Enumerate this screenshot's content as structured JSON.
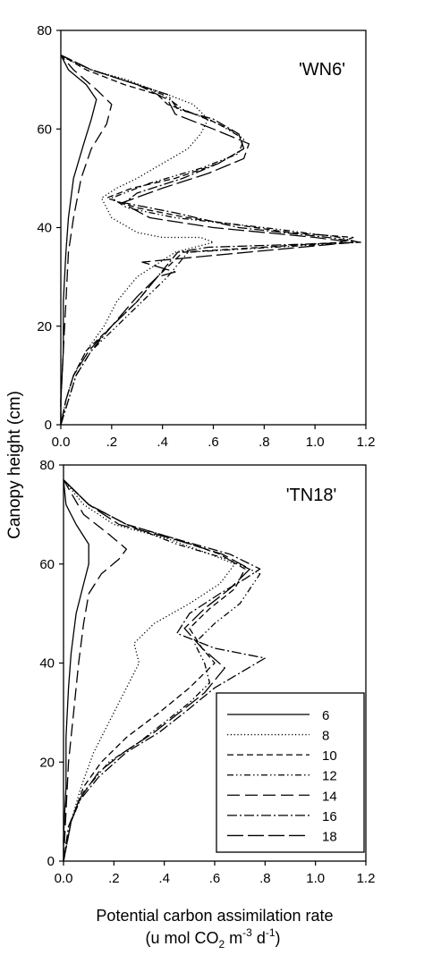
{
  "figure": {
    "ylabel": "Canopy height (cm)",
    "xlabel_line1": "Potential carbon assimilation rate",
    "xlabel_line2_parts": [
      "(u mol CO",
      "2",
      " m",
      "-3",
      " d",
      "-1",
      ")"
    ]
  },
  "chart_data": [
    {
      "type": "line",
      "title": "'WN6'",
      "xlabel": "Potential carbon assimilation rate (u mol CO2 m-3 d-1)",
      "ylabel": "Canopy height (cm)",
      "xlim": [
        0,
        1.2
      ],
      "ylim": [
        0,
        80
      ],
      "x_ticks": [
        0,
        0.2,
        0.4,
        0.6,
        0.8,
        1.0,
        1.2
      ],
      "x_tick_labels": [
        "0.0",
        ".2",
        ".4",
        ".6",
        ".8",
        "1.0",
        "1.2"
      ],
      "y_ticks": [
        0,
        20,
        40,
        60,
        80
      ],
      "y_tick_labels": [
        "0",
        "20",
        "40",
        "60",
        "80"
      ],
      "grid": false,
      "series": [
        {
          "name": "6",
          "style": "solid",
          "x": [
            0,
            0,
            0.01,
            0.01,
            0.02,
            0.03,
            0.05,
            0.09,
            0.12,
            0.14,
            0.1,
            0.03,
            0
          ],
          "y": [
            0,
            5,
            15,
            25,
            35,
            42,
            50,
            57,
            62,
            66,
            69,
            72,
            75
          ]
        },
        {
          "name": "8",
          "style": "dotted",
          "x": [
            0,
            0.02,
            0.05,
            0.1,
            0.17,
            0.22,
            0.3,
            0.45,
            0.6,
            0.55,
            0.4,
            0.3,
            0.2,
            0.16,
            0.22,
            0.3,
            0.4,
            0.5,
            0.55,
            0.58,
            0.52,
            0.42,
            0.36,
            0.26,
            0.12,
            0.03,
            0
          ],
          "y": [
            0,
            5,
            10,
            15,
            20,
            25,
            30,
            35,
            37,
            38,
            38,
            39,
            42,
            46,
            48,
            50,
            53,
            56,
            59,
            62,
            65,
            67,
            68,
            70,
            72,
            74,
            75
          ]
        },
        {
          "name": "10",
          "style": "dashed",
          "x": [
            0,
            0.02,
            0.05,
            0.1,
            0.2,
            0.3,
            0.38,
            0.48,
            1.1,
            1.15,
            0.9,
            0.5,
            0.3,
            0.18,
            0.28,
            0.45,
            0.62,
            0.72,
            0.7,
            0.58,
            0.42,
            0.38,
            0.25,
            0.1,
            0
          ],
          "y": [
            0,
            5,
            10,
            15,
            20,
            25,
            30,
            35,
            37,
            38,
            39,
            42,
            44,
            46,
            48,
            50,
            53,
            56,
            59,
            62,
            65,
            67,
            69,
            72,
            75
          ]
        },
        {
          "name": "12",
          "style": "dashdotdot",
          "x": [
            0,
            0.03,
            0.06,
            0.12,
            0.22,
            0.32,
            0.42,
            0.5,
            1.17,
            1.1,
            0.8,
            0.45,
            0.26,
            0.2,
            0.35,
            0.55,
            0.7,
            0.72,
            0.62,
            0.48,
            0.4,
            0.3,
            0.12,
            0
          ],
          "y": [
            0,
            5,
            10,
            15,
            20,
            25,
            30,
            35,
            37,
            38,
            40,
            42,
            44,
            46,
            49,
            52,
            55,
            58,
            61,
            64,
            67,
            69,
            72,
            75
          ]
        },
        {
          "name": "14",
          "style": "longdash",
          "x": [
            0,
            0,
            0.01,
            0.02,
            0.03,
            0.05,
            0.08,
            0.12,
            0.18,
            0.2,
            0.14,
            0.05,
            0
          ],
          "y": [
            0,
            5,
            15,
            25,
            35,
            42,
            50,
            56,
            61,
            65,
            68,
            72,
            75
          ]
        },
        {
          "name": "16",
          "style": "dashdot",
          "x": [
            0,
            0.03,
            0.06,
            0.12,
            0.2,
            0.3,
            0.38,
            0.46,
            0.58,
            1.18,
            1.05,
            0.7,
            0.45,
            0.25,
            0.3,
            0.48,
            0.62,
            0.72,
            0.7,
            0.6,
            0.46,
            0.42,
            0.3,
            0.12,
            0
          ],
          "y": [
            0,
            5,
            10,
            15,
            20,
            25,
            30,
            35,
            36,
            37,
            38,
            40,
            43,
            45,
            47,
            50,
            53,
            56,
            59,
            62,
            64,
            67,
            69,
            72,
            75
          ]
        },
        {
          "name": "18",
          "style": "longdash2",
          "x": [
            0,
            0.02,
            0.05,
            0.11,
            0.2,
            0.3,
            0.38,
            0.45,
            0.32,
            1.15,
            1.0,
            0.6,
            0.35,
            0.24,
            0.4,
            0.58,
            0.72,
            0.74,
            0.6,
            0.45,
            0.42,
            0.3,
            0.12,
            0
          ],
          "y": [
            0,
            5,
            10,
            15,
            20,
            26,
            30,
            31,
            33,
            37,
            38,
            40,
            42,
            45,
            48,
            51,
            54,
            57,
            60,
            63,
            66,
            69,
            72,
            75
          ]
        }
      ]
    },
    {
      "type": "line",
      "title": "'TN18'",
      "xlabel": "Potential carbon assimilation rate (u mol CO2 m-3 d-1)",
      "ylabel": "Canopy height (cm)",
      "xlim": [
        0,
        1.2
      ],
      "ylim": [
        0,
        80
      ],
      "x_ticks": [
        0,
        0.2,
        0.4,
        0.6,
        0.8,
        1.0,
        1.2
      ],
      "x_tick_labels": [
        "0.0",
        ".2",
        ".4",
        ".6",
        ".8",
        "1.0",
        "1.2"
      ],
      "y_ticks": [
        0,
        20,
        40,
        60,
        80
      ],
      "y_tick_labels": [
        "0",
        "20",
        "40",
        "60",
        "80"
      ],
      "grid": false,
      "legend": {
        "position": "lower-right"
      },
      "series": [
        {
          "name": "6",
          "style": "solid",
          "x": [
            0,
            0,
            0.01,
            0.01,
            0.02,
            0.03,
            0.05,
            0.08,
            0.1,
            0.1,
            0.05,
            0.01,
            0
          ],
          "y": [
            0,
            5,
            15,
            25,
            35,
            42,
            50,
            56,
            60,
            64,
            68,
            72,
            77
          ]
        },
        {
          "name": "8",
          "style": "dotted",
          "x": [
            0,
            0.03,
            0.07,
            0.12,
            0.16,
            0.2,
            0.25,
            0.3,
            0.28,
            0.36,
            0.5,
            0.62,
            0.68,
            0.58,
            0.42,
            0.2,
            0.08,
            0
          ],
          "y": [
            0,
            8,
            15,
            22,
            26,
            30,
            35,
            40,
            44,
            48,
            52,
            56,
            60,
            62,
            65,
            68,
            72,
            77
          ]
        },
        {
          "name": "10",
          "style": "dashed",
          "x": [
            0,
            0.03,
            0.08,
            0.15,
            0.25,
            0.38,
            0.5,
            0.6,
            0.55,
            0.5,
            0.58,
            0.68,
            0.72,
            0.62,
            0.45,
            0.25,
            0.1,
            0
          ],
          "y": [
            0,
            8,
            15,
            20,
            25,
            30,
            35,
            40,
            43,
            47,
            51,
            55,
            59,
            62,
            65,
            68,
            72,
            77
          ]
        },
        {
          "name": "12",
          "style": "dashdotdot",
          "x": [
            0,
            0.03,
            0.08,
            0.18,
            0.3,
            0.4,
            0.5,
            0.58,
            0.56,
            0.52,
            0.6,
            0.7,
            0.78,
            0.65,
            0.45,
            0.25,
            0.1,
            0
          ],
          "y": [
            0,
            8,
            14,
            20,
            24,
            28,
            32,
            36,
            40,
            44,
            48,
            52,
            58,
            61,
            64,
            68,
            72,
            77
          ]
        },
        {
          "name": "14",
          "style": "longdash",
          "x": [
            0,
            0.01,
            0.02,
            0.04,
            0.06,
            0.08,
            0.1,
            0.15,
            0.22,
            0.25,
            0.18,
            0.08,
            0
          ],
          "y": [
            0,
            10,
            20,
            30,
            40,
            48,
            54,
            58,
            61,
            63,
            66,
            70,
            77
          ]
        },
        {
          "name": "16",
          "style": "dashdot",
          "x": [
            0,
            0.02,
            0.06,
            0.14,
            0.25,
            0.38,
            0.48,
            0.6,
            0.8,
            0.6,
            0.45,
            0.5,
            0.62,
            0.72,
            0.78,
            0.66,
            0.45,
            0.25,
            0.1,
            0
          ],
          "y": [
            0,
            7,
            12,
            17,
            22,
            26,
            30,
            35,
            41,
            43,
            46,
            50,
            54,
            57,
            59,
            62,
            65,
            68,
            72,
            77
          ]
        },
        {
          "name": "18",
          "style": "longdash2",
          "x": [
            0,
            0.03,
            0.07,
            0.14,
            0.24,
            0.36,
            0.46,
            0.56,
            0.64,
            0.55,
            0.48,
            0.56,
            0.66,
            0.74,
            0.63,
            0.44,
            0.22,
            0.1,
            0
          ],
          "y": [
            0,
            8,
            13,
            18,
            22,
            26,
            30,
            34,
            39,
            43,
            47,
            51,
            55,
            59,
            62,
            65,
            68,
            72,
            77
          ]
        }
      ]
    }
  ]
}
